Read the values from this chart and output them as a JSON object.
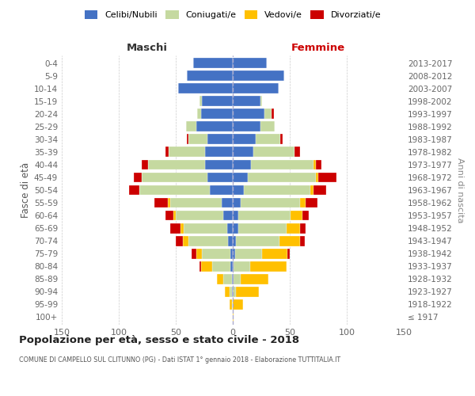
{
  "age_groups": [
    "100+",
    "95-99",
    "90-94",
    "85-89",
    "80-84",
    "75-79",
    "70-74",
    "65-69",
    "60-64",
    "55-59",
    "50-54",
    "45-49",
    "40-44",
    "35-39",
    "30-34",
    "25-29",
    "20-24",
    "15-19",
    "10-14",
    "5-9",
    "0-4"
  ],
  "birth_years": [
    "≤ 1917",
    "1918-1922",
    "1923-1927",
    "1928-1932",
    "1933-1937",
    "1938-1942",
    "1943-1947",
    "1948-1952",
    "1953-1957",
    "1958-1962",
    "1963-1967",
    "1968-1972",
    "1973-1977",
    "1978-1982",
    "1983-1987",
    "1988-1992",
    "1993-1997",
    "1998-2002",
    "2003-2007",
    "2008-2012",
    "2013-2017"
  ],
  "colors": {
    "celibi": "#4472c4",
    "coniugati": "#c5d9a0",
    "vedovi": "#ffc000",
    "divorziati": "#cc0000"
  },
  "males": {
    "celibi": [
      0,
      0,
      1,
      1,
      2,
      2,
      4,
      5,
      8,
      10,
      20,
      22,
      24,
      24,
      22,
      32,
      28,
      27,
      48,
      40,
      35
    ],
    "coniugati": [
      0,
      1,
      2,
      7,
      16,
      25,
      35,
      38,
      42,
      45,
      62,
      58,
      50,
      32,
      17,
      9,
      3,
      2,
      0,
      0,
      0
    ],
    "vedovi": [
      0,
      2,
      4,
      6,
      10,
      5,
      5,
      3,
      2,
      2,
      0,
      0,
      0,
      0,
      0,
      0,
      0,
      0,
      0,
      0,
      0
    ],
    "divorziati": [
      0,
      0,
      0,
      0,
      1,
      4,
      6,
      9,
      7,
      12,
      9,
      7,
      6,
      3,
      1,
      0,
      0,
      0,
      0,
      0,
      0
    ]
  },
  "females": {
    "celibi": [
      0,
      0,
      0,
      1,
      1,
      2,
      3,
      5,
      5,
      7,
      10,
      13,
      16,
      18,
      20,
      24,
      28,
      24,
      40,
      45,
      30
    ],
    "coniugati": [
      0,
      0,
      3,
      6,
      14,
      24,
      38,
      42,
      46,
      52,
      58,
      60,
      55,
      36,
      22,
      13,
      6,
      2,
      0,
      0,
      0
    ],
    "vedovi": [
      1,
      9,
      20,
      24,
      32,
      22,
      18,
      12,
      10,
      5,
      3,
      2,
      2,
      0,
      0,
      0,
      0,
      0,
      0,
      0,
      0
    ],
    "divorziati": [
      0,
      0,
      0,
      0,
      0,
      2,
      4,
      5,
      6,
      10,
      11,
      16,
      5,
      5,
      2,
      0,
      2,
      0,
      0,
      0,
      0
    ]
  },
  "xlim": 150,
  "title": "Popolazione per età, sesso e stato civile - 2018",
  "subtitle": "COMUNE DI CAMPELLO SUL CLITUNNO (PG) - Dati ISTAT 1° gennaio 2018 - Elaborazione TUTTITALIA.IT",
  "xlabel_left": "Maschi",
  "xlabel_right": "Femmine",
  "ylabel": "Fasce di età",
  "ylabel_right": "Anni di nascita",
  "legend_labels": [
    "Celibi/Nubili",
    "Coniugati/e",
    "Vedovi/e",
    "Divorziati/e"
  ],
  "bg_color": "#ffffff",
  "grid_color": "#cccccc"
}
